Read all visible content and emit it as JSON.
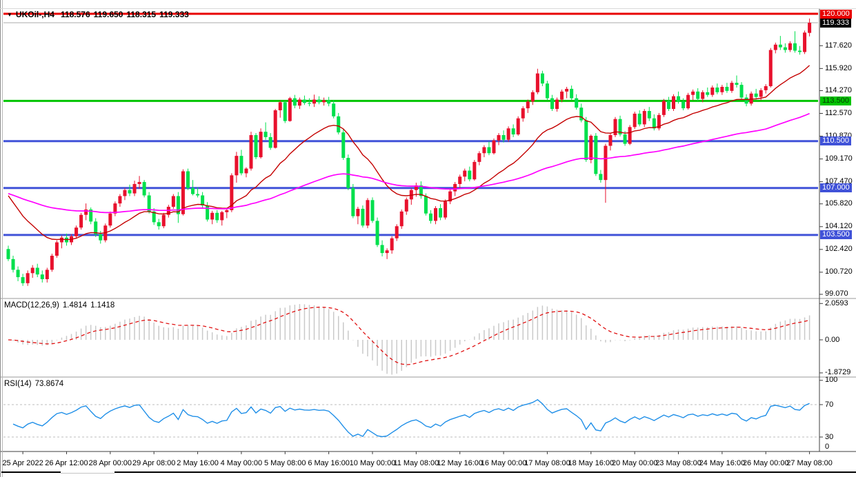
{
  "header": {
    "collapse_icon": "▼",
    "symbol": "UKOil-,H4",
    "open": "118.576",
    "high": "119.650",
    "low": "118.315",
    "close": "119.333"
  },
  "panels": {
    "macd": {
      "name": "MACD(12,26,9)",
      "value": "1.4814",
      "signal_value": "1.1418"
    },
    "rsi": {
      "name": "RSI(14)",
      "value": "73.8674"
    }
  },
  "axes": {
    "price_ticks": [
      "117.620",
      "115.920",
      "114.270",
      "112.570",
      "110.870",
      "109.170",
      "107.470",
      "105.820",
      "104.120",
      "102.420",
      "100.720",
      "99.070"
    ],
    "macd_ticks": [
      {
        "label": "2.0593",
        "value": 2.0593
      },
      {
        "label": "0.00",
        "value": 0
      },
      {
        "label": "-1.8729",
        "value": -1.8729
      }
    ],
    "rsi_ticks": [
      {
        "label": "100",
        "value": 100
      },
      {
        "label": "70",
        "value": 70
      },
      {
        "label": "30",
        "value": 30
      },
      {
        "label": "0",
        "value": 0
      }
    ],
    "time_labels": [
      "25 Apr 2022",
      "26 Apr 12:00",
      "28 Apr 00:00",
      "29 Apr 08:00",
      "2 May 16:00",
      "4 May 00:00",
      "5 May 08:00",
      "6 May 16:00",
      "10 May 00:00",
      "11 May 08:00",
      "12 May 16:00",
      "16 May 00:00",
      "17 May 08:00",
      "18 May 16:00",
      "20 May 00:00",
      "23 May 08:00",
      "24 May 16:00",
      "26 May 00:00",
      "27 May 08:00"
    ]
  },
  "levels": {
    "hlines": [
      {
        "label": "120.000",
        "price": 120.0,
        "color": "#e80000",
        "text_color": "#ffffff"
      },
      {
        "label": "113.500",
        "price": 113.5,
        "color": "#00c400",
        "text_color": "#073a07"
      },
      {
        "label": "110.500",
        "price": 110.5,
        "color": "#4052d8",
        "text_color": "#ffffff"
      },
      {
        "label": "107.000",
        "price": 107.0,
        "color": "#4052d8",
        "text_color": "#ffffff"
      },
      {
        "label": "103.500",
        "price": 103.5,
        "color": "#4052d8",
        "text_color": "#ffffff"
      }
    ],
    "current": {
      "label": "119.333",
      "price": 119.333,
      "badge_color": "#000000",
      "text_color": "#ffffff",
      "line_color": "#ababab"
    },
    "rsi_levels": [
      70,
      30
    ]
  },
  "colors": {
    "bull": "#e8112d",
    "bear": "#00e04c",
    "ma_fast": "#c40000",
    "ma_slow": "#ff00ff",
    "macd_hist": "#c9c9c9",
    "macd_signal": "#e01010",
    "rsi": "#1f8fe8",
    "rsi_level": "#bcbcbc",
    "separator": "#9a9a9a",
    "axis_line": "#3c3c3c",
    "axis_text": "#000000"
  },
  "chart_data": {
    "type": "candlestick",
    "title": "UKOil-,H4",
    "timeframe": "H4",
    "visible_price_range": [
      99.07,
      120.31
    ],
    "bars_per_time_label": 9,
    "first_time_label_bar": 3,
    "overlays": [
      {
        "name": "ma-fast",
        "color": "#c40000",
        "style": "solid",
        "approx_period": 21,
        "seed": 106.9
      },
      {
        "name": "ma-slow",
        "color": "#ff00ff",
        "style": "solid",
        "approx_period": 90,
        "seed": 106.7
      }
    ],
    "macd": {
      "params": [
        12,
        26,
        9
      ],
      "display_values": [
        1.4814,
        1.1418
      ],
      "axis_range": [
        -1.8729,
        2.0593
      ]
    },
    "rsi": {
      "params": [
        14
      ],
      "display_value": 73.8674,
      "axis_range": [
        0,
        100
      ],
      "levels": [
        30,
        70
      ]
    },
    "candles": [
      [
        102.45,
        102.7,
        101.55,
        101.7
      ],
      [
        101.7,
        101.95,
        100.7,
        100.9
      ],
      [
        100.9,
        101.15,
        100.05,
        100.35
      ],
      [
        100.35,
        100.6,
        99.7,
        99.9
      ],
      [
        99.9,
        100.85,
        99.7,
        100.65
      ],
      [
        100.65,
        101.25,
        100.3,
        101.05
      ],
      [
        101.05,
        101.35,
        100.35,
        100.55
      ],
      [
        100.55,
        100.85,
        99.95,
        100.2
      ],
      [
        100.2,
        101.05,
        99.95,
        100.9
      ],
      [
        100.9,
        102.1,
        100.75,
        101.95
      ],
      [
        101.95,
        103.1,
        101.8,
        102.95
      ],
      [
        102.95,
        103.45,
        102.5,
        103.3
      ],
      [
        103.3,
        103.6,
        102.7,
        102.95
      ],
      [
        102.95,
        103.55,
        102.75,
        103.4
      ],
      [
        103.4,
        104.2,
        103.25,
        104.05
      ],
      [
        104.05,
        105.15,
        103.9,
        105.0
      ],
      [
        105.0,
        105.85,
        104.6,
        105.4
      ],
      [
        105.4,
        105.55,
        104.3,
        104.5
      ],
      [
        104.5,
        104.75,
        103.35,
        103.55
      ],
      [
        103.55,
        103.8,
        102.85,
        103.1
      ],
      [
        103.1,
        104.35,
        102.95,
        104.2
      ],
      [
        104.2,
        105.25,
        104.05,
        105.1
      ],
      [
        105.1,
        106.0,
        104.9,
        105.85
      ],
      [
        105.85,
        106.55,
        105.6,
        106.4
      ],
      [
        106.4,
        107.0,
        106.1,
        106.85
      ],
      [
        106.85,
        107.25,
        106.4,
        106.6
      ],
      [
        106.6,
        107.55,
        106.4,
        107.3
      ],
      [
        107.3,
        107.9,
        106.95,
        107.45
      ],
      [
        107.45,
        107.6,
        106.3,
        106.45
      ],
      [
        106.45,
        106.7,
        105.1,
        105.25
      ],
      [
        105.25,
        105.5,
        104.25,
        104.45
      ],
      [
        104.45,
        104.7,
        103.9,
        104.15
      ],
      [
        104.15,
        105.15,
        104.0,
        105.0
      ],
      [
        105.0,
        105.75,
        104.8,
        105.6
      ],
      [
        105.6,
        106.55,
        105.45,
        106.4
      ],
      [
        106.4,
        106.7,
        104.4,
        105.05
      ],
      [
        105.05,
        108.4,
        104.95,
        108.25
      ],
      [
        108.25,
        108.45,
        106.85,
        107.0
      ],
      [
        107.0,
        107.6,
        106.45,
        106.55
      ],
      [
        106.55,
        107.05,
        106.3,
        106.45
      ],
      [
        106.45,
        106.7,
        105.55,
        105.7
      ],
      [
        105.7,
        105.95,
        104.5,
        104.65
      ],
      [
        104.65,
        105.3,
        104.3,
        105.15
      ],
      [
        105.15,
        105.35,
        104.4,
        104.6
      ],
      [
        104.6,
        105.3,
        104.2,
        105.2
      ],
      [
        105.2,
        105.5,
        104.75,
        105.35
      ],
      [
        105.35,
        108.1,
        105.2,
        107.95
      ],
      [
        107.95,
        109.7,
        107.4,
        109.4
      ],
      [
        109.4,
        109.85,
        107.95,
        108.1
      ],
      [
        108.1,
        108.55,
        107.8,
        108.45
      ],
      [
        108.45,
        111.2,
        108.3,
        110.95
      ],
      [
        110.95,
        111.1,
        109.15,
        109.3
      ],
      [
        109.3,
        111.45,
        109.2,
        111.2
      ],
      [
        111.2,
        111.9,
        110.6,
        110.8
      ],
      [
        110.8,
        111.1,
        109.85,
        110.0
      ],
      [
        110.0,
        112.9,
        109.95,
        112.8
      ],
      [
        112.8,
        113.55,
        112.25,
        113.4
      ],
      [
        113.4,
        113.5,
        111.85,
        112.0
      ],
      [
        112.0,
        113.8,
        111.95,
        113.7
      ],
      [
        113.7,
        113.95,
        112.95,
        113.15
      ],
      [
        113.15,
        113.75,
        112.9,
        113.6
      ],
      [
        113.6,
        113.9,
        113.2,
        113.35
      ],
      [
        113.35,
        113.7,
        113.1,
        113.3
      ],
      [
        113.3,
        113.97,
        113.05,
        113.6
      ],
      [
        113.6,
        113.85,
        113.25,
        113.4
      ],
      [
        113.4,
        113.75,
        113.15,
        113.55
      ],
      [
        113.55,
        113.8,
        113.1,
        113.3
      ],
      [
        113.3,
        113.55,
        112.2,
        112.35
      ],
      [
        112.35,
        112.6,
        111.0,
        111.15
      ],
      [
        111.15,
        111.4,
        109.1,
        109.25
      ],
      [
        109.25,
        109.5,
        106.85,
        107.0
      ],
      [
        107.0,
        107.3,
        104.75,
        104.9
      ],
      [
        104.9,
        105.6,
        104.3,
        105.45
      ],
      [
        105.45,
        105.7,
        104.05,
        104.2
      ],
      [
        104.2,
        106.25,
        104.0,
        106.1
      ],
      [
        106.1,
        106.3,
        104.4,
        104.55
      ],
      [
        104.55,
        104.8,
        102.6,
        102.75
      ],
      [
        102.75,
        103.1,
        101.9,
        102.15
      ],
      [
        102.15,
        102.5,
        101.7,
        102.35
      ],
      [
        102.35,
        103.4,
        102.1,
        103.25
      ],
      [
        103.25,
        104.3,
        103.05,
        104.15
      ],
      [
        104.15,
        105.4,
        103.95,
        105.25
      ],
      [
        105.25,
        106.3,
        105.0,
        106.15
      ],
      [
        106.15,
        107.0,
        105.75,
        106.85
      ],
      [
        106.85,
        107.4,
        106.35,
        107.2
      ],
      [
        107.2,
        107.5,
        106.2,
        106.4
      ],
      [
        106.4,
        106.6,
        104.95,
        105.1
      ],
      [
        105.1,
        105.35,
        104.35,
        104.55
      ],
      [
        104.55,
        105.65,
        104.3,
        105.5
      ],
      [
        105.5,
        105.8,
        104.6,
        104.8
      ],
      [
        104.8,
        106.15,
        104.65,
        106.0
      ],
      [
        106.0,
        106.9,
        105.8,
        106.75
      ],
      [
        106.75,
        107.45,
        106.4,
        107.3
      ],
      [
        107.3,
        108.0,
        106.95,
        107.85
      ],
      [
        107.85,
        108.45,
        107.5,
        108.3
      ],
      [
        108.3,
        108.6,
        107.5,
        107.65
      ],
      [
        107.65,
        109.1,
        107.55,
        108.95
      ],
      [
        108.95,
        109.75,
        108.7,
        109.6
      ],
      [
        109.6,
        110.2,
        109.3,
        110.05
      ],
      [
        110.05,
        110.45,
        109.45,
        109.6
      ],
      [
        109.6,
        110.7,
        109.5,
        110.55
      ],
      [
        110.55,
        111.1,
        110.2,
        110.95
      ],
      [
        110.95,
        111.3,
        110.4,
        110.6
      ],
      [
        110.6,
        111.6,
        110.45,
        111.45
      ],
      [
        111.45,
        111.75,
        110.8,
        111.0
      ],
      [
        111.0,
        112.35,
        110.9,
        112.2
      ],
      [
        112.2,
        113.1,
        111.95,
        112.95
      ],
      [
        112.95,
        113.6,
        112.6,
        113.45
      ],
      [
        113.45,
        114.3,
        113.2,
        114.15
      ],
      [
        114.15,
        115.9,
        114.0,
        115.55
      ],
      [
        115.55,
        115.75,
        114.6,
        114.8
      ],
      [
        114.8,
        115.0,
        113.55,
        113.7
      ],
      [
        113.7,
        113.95,
        112.75,
        112.9
      ],
      [
        112.9,
        113.75,
        112.7,
        113.6
      ],
      [
        113.6,
        114.35,
        113.4,
        114.2
      ],
      [
        114.2,
        114.55,
        113.7,
        114.4
      ],
      [
        114.4,
        114.65,
        113.55,
        113.7
      ],
      [
        113.7,
        114.0,
        112.85,
        113.0
      ],
      [
        113.0,
        113.3,
        111.9,
        112.05
      ],
      [
        112.05,
        112.3,
        108.95,
        109.1
      ],
      [
        109.1,
        111.0,
        108.85,
        110.9
      ],
      [
        110.9,
        111.1,
        107.9,
        108.05
      ],
      [
        108.05,
        108.35,
        107.4,
        107.6
      ],
      [
        107.6,
        110.3,
        105.9,
        110.15
      ],
      [
        110.15,
        111.1,
        109.8,
        110.95
      ],
      [
        110.95,
        112.3,
        110.8,
        112.15
      ],
      [
        112.15,
        112.4,
        110.85,
        111.0
      ],
      [
        111.0,
        111.25,
        110.15,
        110.3
      ],
      [
        110.3,
        111.7,
        110.2,
        111.55
      ],
      [
        111.55,
        112.7,
        111.4,
        112.55
      ],
      [
        112.55,
        112.8,
        111.6,
        111.75
      ],
      [
        111.75,
        112.9,
        111.55,
        112.75
      ],
      [
        112.75,
        113.05,
        112.0,
        112.2
      ],
      [
        112.2,
        112.5,
        111.3,
        111.45
      ],
      [
        111.45,
        112.6,
        111.3,
        112.45
      ],
      [
        112.45,
        113.65,
        112.3,
        113.5
      ],
      [
        113.5,
        113.8,
        112.75,
        112.9
      ],
      [
        112.9,
        114.0,
        112.75,
        113.85
      ],
      [
        113.85,
        114.2,
        113.3,
        113.45
      ],
      [
        113.45,
        113.7,
        112.8,
        112.95
      ],
      [
        112.95,
        114.1,
        112.85,
        113.95
      ],
      [
        113.95,
        114.35,
        113.55,
        114.2
      ],
      [
        114.2,
        114.45,
        113.5,
        113.65
      ],
      [
        113.65,
        114.3,
        113.4,
        114.15
      ],
      [
        114.15,
        114.5,
        113.8,
        113.95
      ],
      [
        113.95,
        114.65,
        113.8,
        114.5
      ],
      [
        114.5,
        114.8,
        114.0,
        114.15
      ],
      [
        114.15,
        114.7,
        113.95,
        114.55
      ],
      [
        114.55,
        114.85,
        114.1,
        114.25
      ],
      [
        114.25,
        115.0,
        114.1,
        114.85
      ],
      [
        114.85,
        115.4,
        114.5,
        114.7
      ],
      [
        114.7,
        114.9,
        113.6,
        113.75
      ],
      [
        113.75,
        114.0,
        113.1,
        113.3
      ],
      [
        113.3,
        114.2,
        113.15,
        114.05
      ],
      [
        114.05,
        114.4,
        113.6,
        113.8
      ],
      [
        113.8,
        114.45,
        113.55,
        114.3
      ],
      [
        114.3,
        114.75,
        114.05,
        114.6
      ],
      [
        114.6,
        117.45,
        114.5,
        117.3
      ],
      [
        117.3,
        117.85,
        117.05,
        117.7
      ],
      [
        117.7,
        118.35,
        117.3,
        117.5
      ],
      [
        117.5,
        117.8,
        117.1,
        117.3
      ],
      [
        117.3,
        117.95,
        117.15,
        117.8
      ],
      [
        117.8,
        118.7,
        117.1,
        117.25
      ],
      [
        117.25,
        117.6,
        116.95,
        117.15
      ],
      [
        117.15,
        118.75,
        117.0,
        118.6
      ],
      [
        118.576,
        119.65,
        118.315,
        119.333
      ]
    ]
  }
}
